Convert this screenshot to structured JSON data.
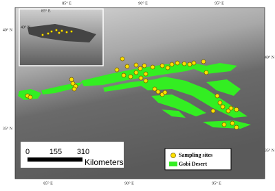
{
  "map": {
    "graticule": {
      "top": [
        "85° E",
        "90° E",
        "95° E"
      ],
      "bottom": [
        "85° E",
        "90° E",
        "95° E"
      ],
      "left": [
        "40° N",
        "35° N"
      ],
      "right": [
        "40° N",
        "35° N"
      ]
    },
    "inset": {
      "lat_label": "40° N",
      "lon_label": "85° E"
    },
    "scale_bar": {
      "ticks": [
        0,
        155,
        310
      ],
      "unit": "Kilometers"
    },
    "legend": [
      {
        "label": "Sampling sites"
      },
      {
        "label": "Gobi Desert"
      }
    ]
  }
}
